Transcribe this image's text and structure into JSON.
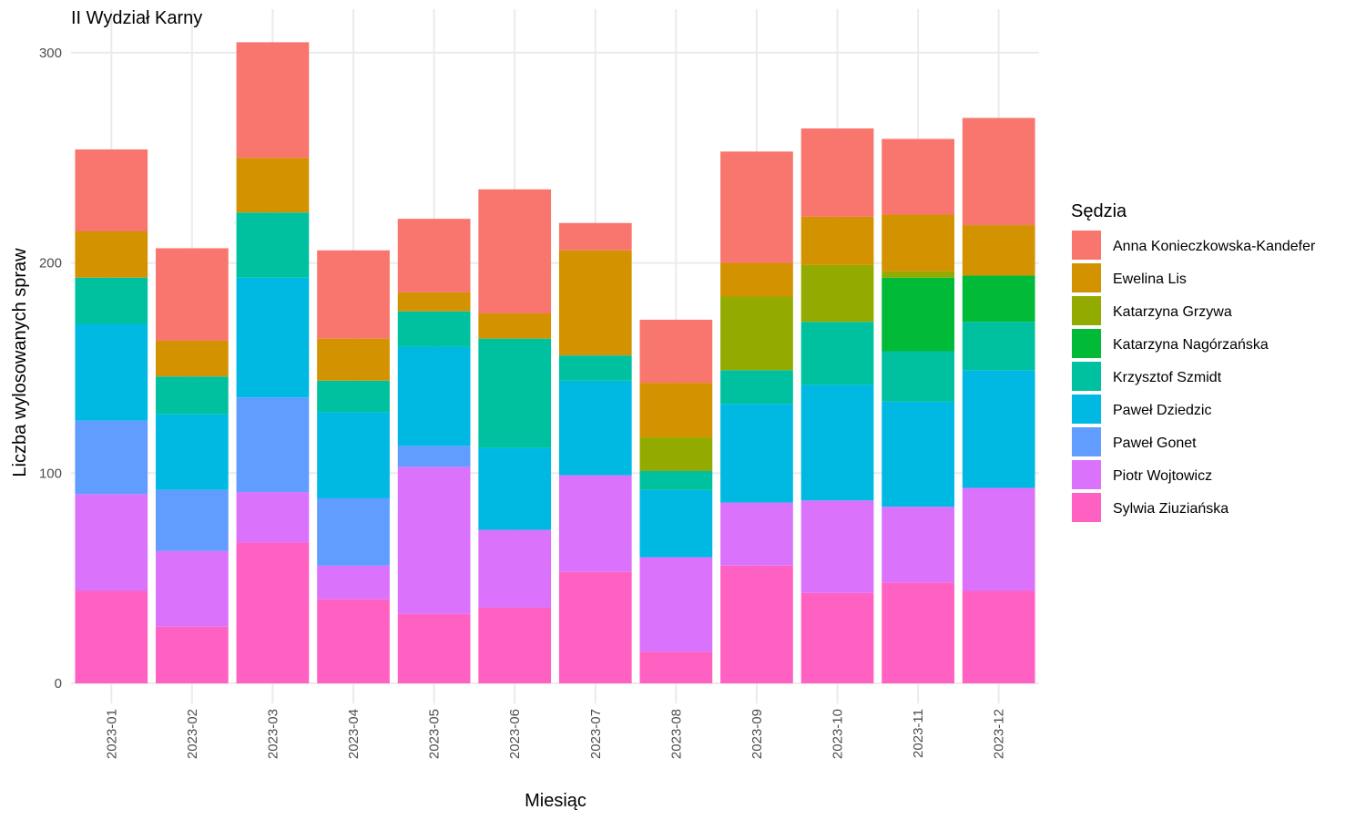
{
  "chart_data": {
    "type": "bar",
    "stacked": true,
    "title": "II Wydział Karny",
    "xlabel": "Miesiąc",
    "ylabel": "Liczba wylosowanych spraw",
    "ylim": [
      0,
      305
    ],
    "yticks": [
      0,
      100,
      200,
      300
    ],
    "grid": true,
    "legend_position": "right",
    "legend_title": "Sędzia",
    "categories": [
      "2023-01",
      "2023-02",
      "2023-03",
      "2023-04",
      "2023-05",
      "2023-06",
      "2023-07",
      "2023-08",
      "2023-09",
      "2023-10",
      "2023-11",
      "2023-12"
    ],
    "series": [
      {
        "name": "Sylwia Ziuziańska",
        "color": "#FF61C3",
        "values": [
          44,
          27,
          67,
          40,
          33,
          36,
          53,
          15,
          56,
          43,
          48,
          44
        ]
      },
      {
        "name": "Piotr Wojtowicz",
        "color": "#DB72FB",
        "values": [
          46,
          36,
          24,
          16,
          70,
          37,
          46,
          45,
          30,
          44,
          36,
          49
        ]
      },
      {
        "name": "Paweł Gonet",
        "color": "#619CFF",
        "values": [
          35,
          29,
          45,
          32,
          10,
          0,
          0,
          0,
          0,
          0,
          0,
          0
        ]
      },
      {
        "name": "Paweł Dziedzic",
        "color": "#00B9E3",
        "values": [
          46,
          36,
          57,
          41,
          47,
          39,
          45,
          32,
          47,
          55,
          50,
          56
        ]
      },
      {
        "name": "Krzysztof Szmidt",
        "color": "#00C19F",
        "values": [
          22,
          18,
          31,
          15,
          17,
          52,
          12,
          9,
          16,
          30,
          24,
          23
        ]
      },
      {
        "name": "Katarzyna Nagórzańska",
        "color": "#00BA38",
        "values": [
          0,
          0,
          0,
          0,
          0,
          0,
          0,
          0,
          0,
          0,
          35,
          22
        ]
      },
      {
        "name": "Katarzyna Grzywa",
        "color": "#93AA00",
        "values": [
          0,
          0,
          0,
          0,
          0,
          0,
          0,
          16,
          35,
          27,
          3,
          0
        ]
      },
      {
        "name": "Ewelina Lis",
        "color": "#D39200",
        "values": [
          22,
          17,
          26,
          20,
          9,
          12,
          50,
          26,
          16,
          23,
          27,
          24
        ]
      },
      {
        "name": "Anna Konieczkowska-Kandefer",
        "color": "#F8766D",
        "values": [
          39,
          44,
          55,
          42,
          35,
          59,
          13,
          30,
          53,
          42,
          36,
          51
        ]
      }
    ]
  }
}
